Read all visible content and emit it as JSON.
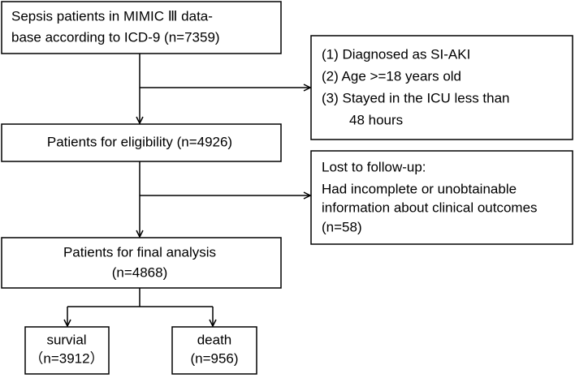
{
  "nodes": [
    {
      "lines": [
        "Sepsis patients in MIMIC Ⅲ data-",
        "base according to ICD-9  (n=7359)"
      ]
    },
    {
      "lines": [
        "(1) Diagnosed as SI-AKI",
        "(2) Age >=18 years old",
        "(3) Stayed in the ICU less than",
        "48 hours"
      ]
    },
    {
      "lines": [
        "Patients for eligibility (n=4926)"
      ]
    },
    {
      "lines": [
        "Lost to follow-up:",
        "Had incomplete or unobtainable",
        "information about clinical outcomes",
        "(n=58)"
      ]
    },
    {
      "lines": [
        "Patients for final analysis",
        "(n=4868)"
      ]
    },
    {
      "lines": [
        "survial",
        "（n=3912）"
      ]
    },
    {
      "lines": [
        "death",
        "(n=956)"
      ]
    }
  ]
}
